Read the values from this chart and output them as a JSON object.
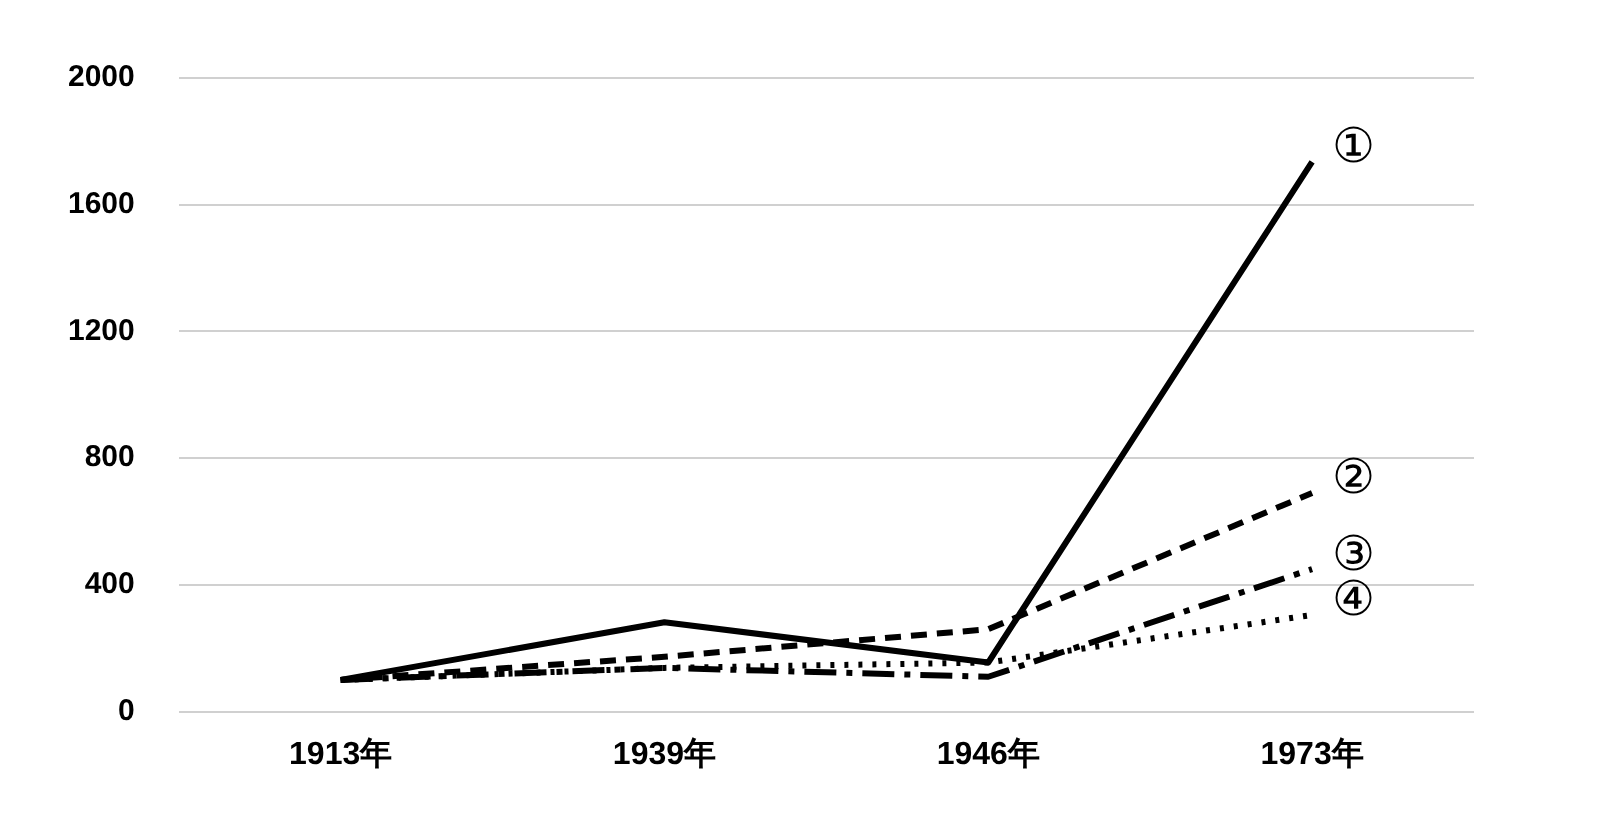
{
  "chart_data": {
    "type": "line",
    "categories": [
      "1913年",
      "1939年",
      "1946年",
      "1973年"
    ],
    "series": [
      {
        "name": "①",
        "color": "#000000",
        "line_style": "solid",
        "values": [
          100,
          282,
          155,
          1735
        ]
      },
      {
        "name": "②",
        "color": "#000000",
        "line_style": "dashed",
        "values": [
          100,
          173,
          260,
          690
        ]
      },
      {
        "name": "③",
        "color": "#000000",
        "line_style": "dashdot",
        "values": [
          100,
          138,
          110,
          450
        ]
      },
      {
        "name": "④",
        "color": "#000000",
        "line_style": "dotted",
        "values": [
          100,
          138,
          155,
          305
        ]
      }
    ],
    "ylim": [
      0,
      2000
    ],
    "yticks": [
      0,
      400,
      800,
      1200,
      1600,
      2000
    ],
    "grid": "y",
    "legend": false,
    "marker": "none"
  }
}
